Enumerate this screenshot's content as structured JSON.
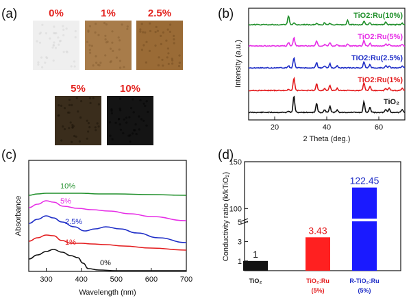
{
  "panel_labels": [
    "(a)",
    "(b)",
    "(c)",
    "(d)"
  ],
  "photos": [
    {
      "label": "0%",
      "color": "#efefef",
      "shade": "#d9d9d9"
    },
    {
      "label": "1%",
      "color": "#a87c4a",
      "shade": "#8b6236"
    },
    {
      "label": "2.5%",
      "color": "#9a6b36",
      "shade": "#7a5024"
    },
    {
      "label": "5%",
      "color": "#3a2d1c",
      "shade": "#1f170c"
    },
    {
      "label": "10%",
      "color": "#141414",
      "shade": "#050505"
    }
  ],
  "chart_data": [
    {
      "panel": "(b)",
      "type": "line",
      "xlabel": "2 Theta (deg.)",
      "ylabel": "Intensity (a.u.)",
      "xlim": [
        10,
        70
      ],
      "xticks": [
        20,
        40,
        60
      ],
      "peaks": [
        25.3,
        27.4,
        36.1,
        39.2,
        41.2,
        44.0,
        48.0,
        54.3,
        56.6,
        62.7,
        64.0,
        69.0
      ],
      "series": [
        {
          "name": "TiO₂",
          "color": "#111111"
        },
        {
          "name": "TiO2:Ru(1%)",
          "color": "#e31a1c"
        },
        {
          "name": "TiO2:Ru(2.5%)",
          "color": "#1f2ec7"
        },
        {
          "name": "TiO2:Ru(5%)",
          "color": "#e62ee6"
        },
        {
          "name": "TiO2:Ru(10%)",
          "color": "#1f8f2a"
        }
      ]
    },
    {
      "panel": "(c)",
      "type": "line",
      "xlabel": "Wavelength (nm)",
      "ylabel": "Absorbance",
      "xlim": [
        250,
        700
      ],
      "xticks": [
        300,
        400,
        500,
        600,
        700
      ],
      "series": [
        {
          "name": "0%",
          "color": "#111111"
        },
        {
          "name": "1%",
          "color": "#e31a1c"
        },
        {
          "name": "2.5%",
          "color": "#1f2ec7"
        },
        {
          "name": "5%",
          "color": "#e62ee6"
        },
        {
          "name": "10%",
          "color": "#1f8f2a"
        }
      ]
    },
    {
      "panel": "(d)",
      "type": "bar",
      "ylabel": "Conductivity ratio (k/kTiO₂)",
      "yticks": [
        "1",
        "3",
        "5",
        "100",
        "150"
      ],
      "categories": [
        {
          "line1": "TiO₂",
          "line2": "",
          "color": "#111111"
        },
        {
          "line1": "TiO₂:Ru",
          "line2": "(5%)",
          "color": "#e31a1c"
        },
        {
          "line1": "R-TiO₂:Ru",
          "line2": "(5%)",
          "color": "#1f2ec7"
        }
      ],
      "values": [
        1,
        3.43,
        122.45
      ],
      "value_labels": [
        "1",
        "3.43",
        "122.45"
      ],
      "bar_colors": [
        "#111111",
        "#ff2020",
        "#1a1aff"
      ],
      "label_colors": [
        "#111111",
        "#e31a1c",
        "#1f2ec7"
      ]
    }
  ]
}
